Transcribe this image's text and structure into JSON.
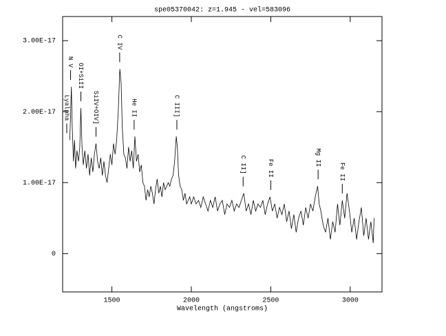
{
  "chart_data": {
    "type": "line",
    "title": "spe05370042: z=1.945 - vel=583096",
    "x_label": "Wavelength (angstroms)",
    "xlim": [
      1190,
      3200
    ],
    "ylim": [
      -5.4e-18,
      3.34e-17
    ],
    "xticks": [
      1500,
      2000,
      2500,
      3000
    ],
    "yticks": [
      0,
      {
        "value": 1e-17,
        "label": "1.00E-17"
      },
      {
        "value": 2e-17,
        "label": "2.00E-17"
      },
      {
        "value": 3e-17,
        "label": "3.00E-17"
      }
    ],
    "color": "#000000",
    "x": [
      1235,
      1245,
      1250,
      1258,
      1265,
      1272,
      1280,
      1290,
      1298,
      1305,
      1312,
      1320,
      1330,
      1340,
      1350,
      1360,
      1370,
      1380,
      1390,
      1400,
      1410,
      1420,
      1430,
      1440,
      1450,
      1460,
      1470,
      1480,
      1490,
      1500,
      1510,
      1520,
      1530,
      1540,
      1550,
      1558,
      1565,
      1575,
      1585,
      1595,
      1605,
      1615,
      1625,
      1635,
      1645,
      1655,
      1665,
      1675,
      1685,
      1695,
      1705,
      1715,
      1725,
      1735,
      1745,
      1755,
      1765,
      1775,
      1785,
      1795,
      1805,
      1815,
      1825,
      1835,
      1845,
      1855,
      1865,
      1875,
      1885,
      1895,
      1905,
      1912,
      1920,
      1930,
      1940,
      1950,
      1960,
      1970,
      1980,
      1990,
      2000,
      2015,
      2030,
      2045,
      2060,
      2075,
      2090,
      2105,
      2120,
      2135,
      2150,
      2165,
      2180,
      2195,
      2210,
      2225,
      2240,
      2255,
      2270,
      2285,
      2300,
      2315,
      2330,
      2345,
      2360,
      2375,
      2390,
      2405,
      2420,
      2435,
      2450,
      2465,
      2480,
      2495,
      2510,
      2525,
      2540,
      2555,
      2570,
      2585,
      2600,
      2615,
      2630,
      2645,
      2660,
      2675,
      2690,
      2705,
      2720,
      2735,
      2750,
      2765,
      2780,
      2795,
      2805,
      2815,
      2830,
      2845,
      2860,
      2875,
      2890,
      2905,
      2920,
      2935,
      2950,
      2965,
      2980,
      2995,
      3010,
      3025,
      3040,
      3055,
      3070,
      3085,
      3100,
      3115,
      3130,
      3145,
      3150
    ],
    "values": [
      1.6e-17,
      2.35e-17,
      1.8e-17,
      1.3e-17,
      1.6e-17,
      1.2e-17,
      1.45e-17,
      1.3e-17,
      1.5e-17,
      2.05e-17,
      1.5e-17,
      1.25e-17,
      1.45e-17,
      1.2e-17,
      1.4e-17,
      1.1e-17,
      1.35e-17,
      1.15e-17,
      1.4e-17,
      1.55e-17,
      1.3e-17,
      1.2e-17,
      1.35e-17,
      1.1e-17,
      1.3e-17,
      1.1e-17,
      1e-17,
      1.2e-17,
      1.4e-17,
      1.25e-17,
      1.55e-17,
      1.4e-17,
      1.6e-17,
      2e-17,
      2.6e-17,
      2.4e-17,
      1.8e-17,
      1.4e-17,
      1.35e-17,
      1.2e-17,
      1.5e-17,
      1.3e-17,
      1.45e-17,
      1.2e-17,
      1.65e-17,
      1.3e-17,
      1.4e-17,
      1.15e-17,
      1.25e-17,
      1e-17,
      9.5e-18,
      7.5e-18,
      9e-18,
      8e-18,
      9.5e-18,
      8.5e-18,
      7e-18,
      9e-18,
      1.05e-17,
      8.5e-18,
      9.5e-18,
      8e-18,
      1e-17,
      9e-18,
      9.5e-18,
      1e-17,
      9.5e-18,
      1.05e-17,
      1.1e-17,
      1.3e-17,
      1.65e-17,
      1.5e-17,
      1.1e-17,
      9.5e-18,
      9e-18,
      7.5e-18,
      8.5e-18,
      7e-18,
      7.5e-18,
      8e-18,
      7e-18,
      8e-18,
      7e-18,
      7.5e-18,
      6.5e-18,
      8e-18,
      7e-18,
      6e-18,
      7.5e-18,
      6.5e-18,
      8e-18,
      6e-18,
      7e-18,
      7.5e-18,
      5.5e-18,
      7e-18,
      6.5e-18,
      7.5e-18,
      6e-18,
      7e-18,
      6.5e-18,
      7.5e-18,
      8.5e-18,
      6e-18,
      7e-18,
      5.5e-18,
      7.5e-18,
      6e-18,
      7e-18,
      6.5e-18,
      7.5e-18,
      5.5e-18,
      7e-18,
      8e-18,
      6e-18,
      7e-18,
      5e-18,
      6.5e-18,
      5.5e-18,
      7e-18,
      4.5e-18,
      6e-18,
      3.5e-18,
      5.5e-18,
      3e-18,
      5e-18,
      6e-18,
      4e-18,
      6.5e-18,
      5e-18,
      7e-18,
      6e-18,
      8e-18,
      9.5e-18,
      7e-18,
      6e-18,
      4e-18,
      3e-18,
      5e-18,
      2e-18,
      4.5e-18,
      3e-18,
      7e-18,
      4e-18,
      7.5e-18,
      5e-18,
      8.5e-18,
      6e-18,
      3e-18,
      5e-18,
      2e-18,
      4.5e-18,
      6.5e-18,
      2.5e-18,
      5e-18,
      2e-18,
      4.5e-18,
      1.5e-18,
      5e-18
    ],
    "annotations": [
      {
        "label": "Lyalpha",
        "x": 1216
      },
      {
        "label": "N V",
        "x": 1240
      },
      {
        "label": "OI+SiII",
        "x": 1305
      },
      {
        "label": "SiIV+OIV]",
        "x": 1400
      },
      {
        "label": "C IV",
        "x": 1549
      },
      {
        "label": "He II",
        "x": 1640
      },
      {
        "label": "C III]",
        "x": 1909
      },
      {
        "label": "C II]",
        "x": 2326
      },
      {
        "label": "Fe II",
        "x": 2500
      },
      {
        "label": "Mg II",
        "x": 2798
      },
      {
        "label": "Fe II",
        "x": 2950
      }
    ]
  }
}
